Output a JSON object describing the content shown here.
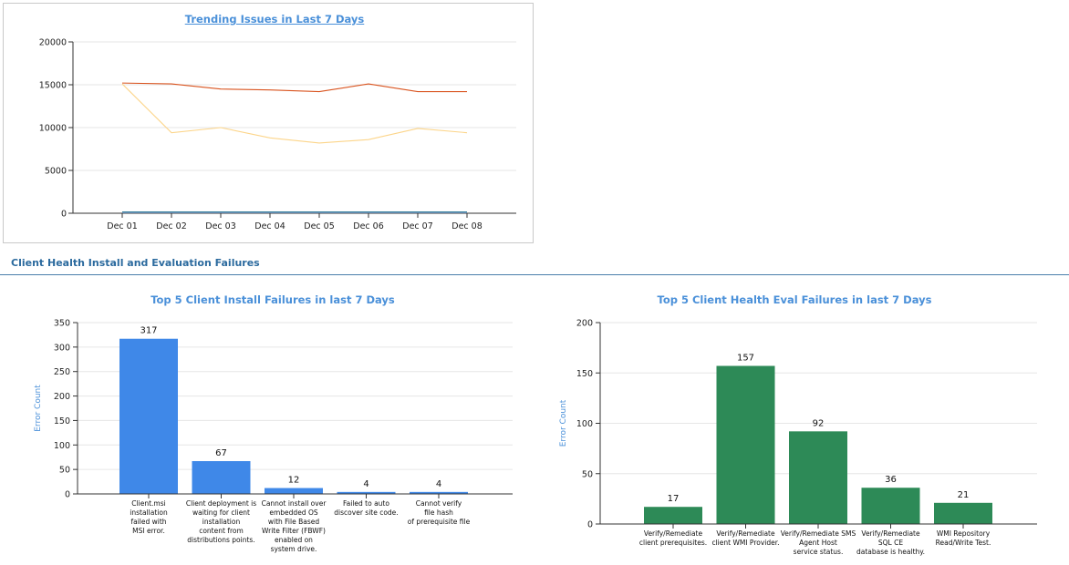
{
  "section": {
    "heading": "Client Health Install and Evaluation Failures"
  },
  "chart_data": [
    {
      "type": "line",
      "title": "Trending Issues in Last 7 Days",
      "categories": [
        "Dec 01",
        "Dec 02",
        "Dec 03",
        "Dec 04",
        "Dec 05",
        "Dec 06",
        "Dec 07",
        "Dec 08"
      ],
      "ylim": [
        0,
        20000
      ],
      "yticks": [
        0,
        5000,
        10000,
        15000,
        20000
      ],
      "grid": true,
      "series": [
        {
          "color": "#d9531e",
          "values": [
            15200,
            15100,
            14500,
            14400,
            14200,
            15100,
            14200,
            14200
          ]
        },
        {
          "color": "#fcd58a",
          "values": [
            15100,
            9400,
            10000,
            8800,
            8200,
            8600,
            9900,
            9400
          ]
        },
        {
          "color": "#2e7d9a",
          "values": [
            150,
            150,
            150,
            150,
            150,
            150,
            150,
            150
          ]
        },
        {
          "color": "#6f8fb5",
          "values": [
            60,
            60,
            60,
            60,
            60,
            60,
            60,
            60
          ]
        }
      ]
    },
    {
      "type": "bar",
      "title": "Top 5 Client Install Failures in last 7 Days",
      "ylabel": "Error Count",
      "ylim": [
        0,
        350
      ],
      "yticks": [
        0,
        50,
        100,
        150,
        200,
        250,
        300,
        350
      ],
      "grid": true,
      "bar_color": "#3f88e8",
      "categories": [
        [
          "Client.msi",
          "installation",
          "failed with",
          "MSI error."
        ],
        [
          "Client deployment is",
          "waiting for client",
          "installation",
          "content from",
          "distributions points."
        ],
        [
          "Cannot install over",
          "embedded OS",
          "with File Based",
          "Write Filter (FBWF)",
          "enabled on",
          "system drive."
        ],
        [
          "Failed to auto",
          "discover site code."
        ],
        [
          "Cannot verify",
          "file hash",
          "of prerequisite file"
        ]
      ],
      "values": [
        317,
        67,
        12,
        4,
        4
      ]
    },
    {
      "type": "bar",
      "title": "Top 5 Client Health Eval Failures in last 7 Days",
      "ylabel": "Error Count",
      "ylim": [
        0,
        200
      ],
      "yticks": [
        0,
        50,
        100,
        150,
        200
      ],
      "grid": true,
      "bar_color": "#2d8a57",
      "categories": [
        [
          "Verify/Remediate",
          "client prerequisites."
        ],
        [
          "Verify/Remediate",
          "client WMI Provider."
        ],
        [
          "Verify/Remediate SMS",
          "Agent Host",
          "service status."
        ],
        [
          "Verify/Remediate",
          "SQL CE",
          "database is healthy."
        ],
        [
          "WMI Repository",
          "Read/Write Test."
        ]
      ],
      "values": [
        17,
        157,
        92,
        36,
        21
      ]
    }
  ]
}
